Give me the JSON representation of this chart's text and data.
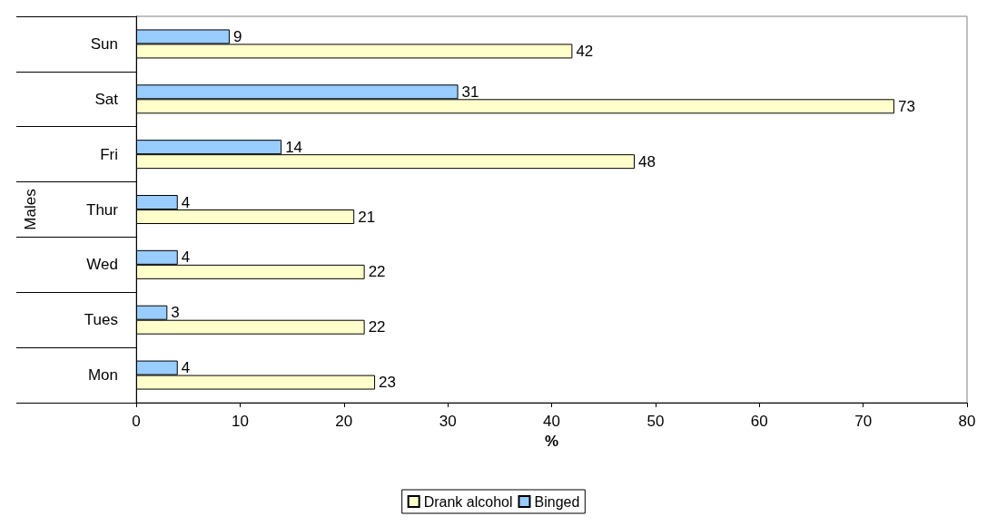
{
  "chart_data": {
    "type": "bar",
    "orientation": "horizontal",
    "categories": [
      "Sun",
      "Sat",
      "Fri",
      "Thur",
      "Wed",
      "Tues",
      "Mon"
    ],
    "series": [
      {
        "name": "Drank alcohol",
        "color": "#ffffcc",
        "values": [
          42,
          73,
          48,
          21,
          22,
          22,
          23
        ]
      },
      {
        "name": "Binged",
        "color": "#99ccff",
        "values": [
          9,
          31,
          14,
          4,
          4,
          3,
          4
        ]
      }
    ],
    "xlim": [
      0,
      80
    ],
    "xticks": [
      0,
      10,
      20,
      30,
      40,
      50,
      60,
      70,
      80
    ],
    "xlabel": "%",
    "ylabel": "Males",
    "data_labels": true,
    "legend": "bottom",
    "grid": false
  }
}
